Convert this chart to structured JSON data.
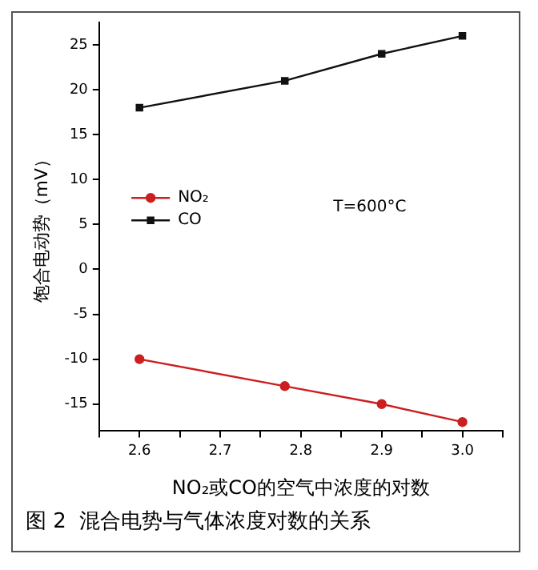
{
  "chart_data": {
    "type": "line",
    "title": "图 2  混合电势与气体浓度对数的关系",
    "xlabel": "NO₂或CO的空气中浓度的对数",
    "ylabel": "饱合电动势（mV）",
    "annotations": [
      "T=600°C"
    ],
    "x": [
      2.6,
      2.78,
      2.9,
      3.0
    ],
    "series": [
      {
        "name": "NO₂",
        "color": "#cc1f1f",
        "marker": "circle",
        "values": [
          -10,
          -13,
          -15,
          -17
        ]
      },
      {
        "name": "CO",
        "color": "#111111",
        "marker": "square",
        "values": [
          18,
          21,
          24,
          26
        ]
      }
    ],
    "xlim": [
      2.55,
      3.05
    ],
    "xticks": [
      {
        "value": 2.55,
        "label": null
      },
      2.6,
      {
        "value": 2.65,
        "label": null
      },
      2.7,
      {
        "value": 2.75,
        "label": null
      },
      2.8,
      {
        "value": 2.85,
        "label": null
      },
      2.9,
      {
        "value": 2.95,
        "label": null
      },
      {
        "value": 3.0,
        "label": "3.0"
      },
      {
        "value": 3.05,
        "label": null
      }
    ],
    "ylim": [
      -18,
      27.5
    ],
    "yticks": [
      -15,
      -10,
      -5,
      0,
      5,
      10,
      15,
      20,
      25
    ],
    "grid": false,
    "legend": "left",
    "line_style": "solid"
  }
}
